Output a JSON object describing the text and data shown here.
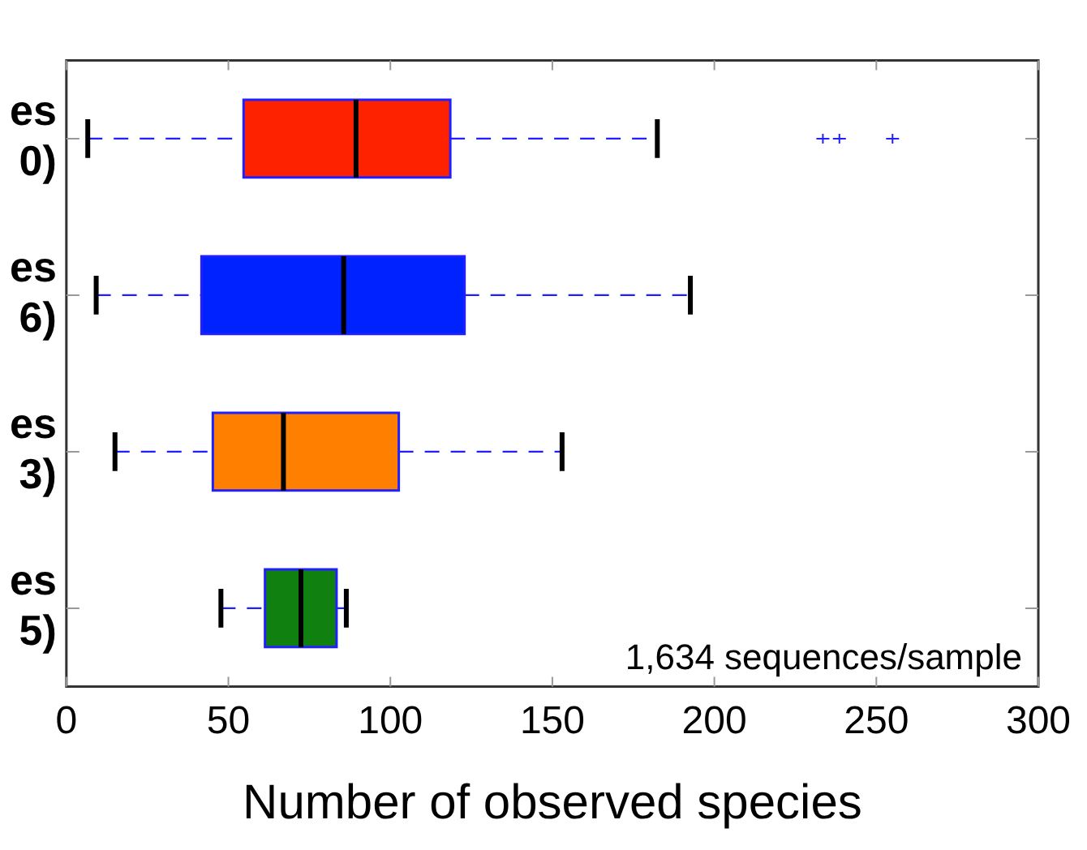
{
  "chart_data": {
    "type": "box",
    "orientation": "horizontal",
    "xlabel": "Number of observed species",
    "categories": [
      "es\n0)",
      "es\n6)",
      "es\n3)",
      "es\n5)"
    ],
    "colors": [
      "#ff2200",
      "#0022ff",
      "#ff7f00",
      "#108010"
    ],
    "boxes": [
      {
        "low": 6.6,
        "q1": 54.7,
        "median": 89.4,
        "q3": 118.5,
        "high": 182.4,
        "outliers": [
          233.5,
          238.6,
          255
        ]
      },
      {
        "low": 9.2,
        "q1": 41.7,
        "median": 85.6,
        "q3": 122.9,
        "high": 192.6
      },
      {
        "low": 15,
        "q1": 45.2,
        "median": 67,
        "q3": 102.6,
        "high": 153
      },
      {
        "low": 47.7,
        "q1": 61.3,
        "median": 72.4,
        "q3": 83.4,
        "high": 86.4
      }
    ],
    "xlim": [
      0,
      300
    ],
    "xticks": [
      0,
      50,
      100,
      150,
      200,
      250,
      300
    ],
    "annotations": [
      "1,634 sequences/sample"
    ],
    "grid": false,
    "legend": false
  }
}
